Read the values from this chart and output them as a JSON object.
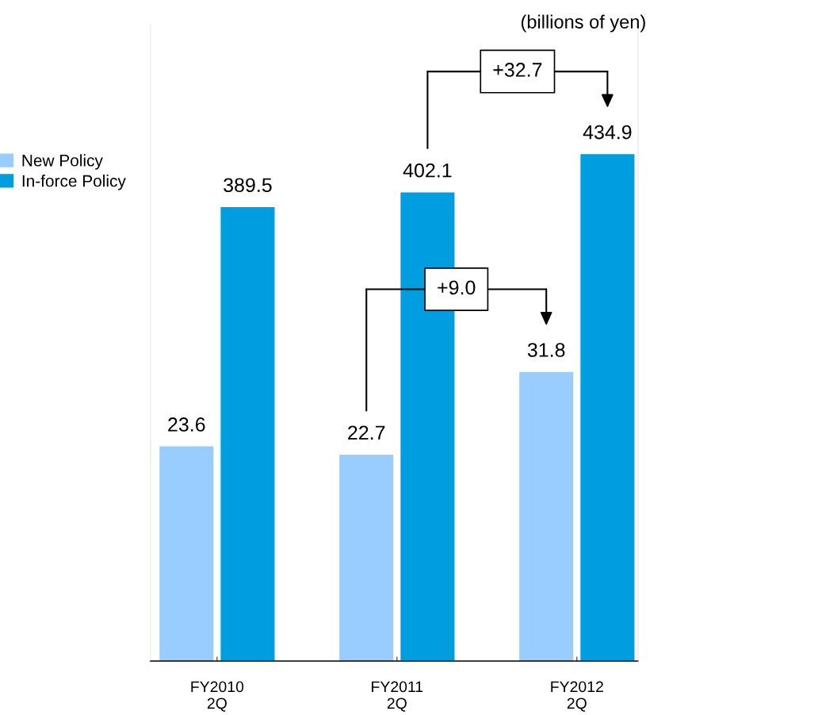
{
  "chart_data": {
    "type": "bar",
    "categories": [
      "FY2010\n2Q",
      "FY2011\n2Q",
      "FY2012\n2Q"
    ],
    "series": [
      {
        "name": "New Policy",
        "color": "#99ccff",
        "values": [
          23.6,
          22.7,
          31.8
        ]
      },
      {
        "name": "In-force Policy",
        "color": "#009de0",
        "values": [
          389.5,
          402.1,
          434.9
        ],
        "axis": "y2"
      }
    ],
    "ylim": [
      0,
      70
    ],
    "y2lim": [
      0,
      546
    ],
    "tick_labels": "x",
    "data_labels": true,
    "legend": "left",
    "grid": false,
    "annotations": [
      "(billions of yen)",
      "+32.7",
      "+9.0"
    ]
  }
}
